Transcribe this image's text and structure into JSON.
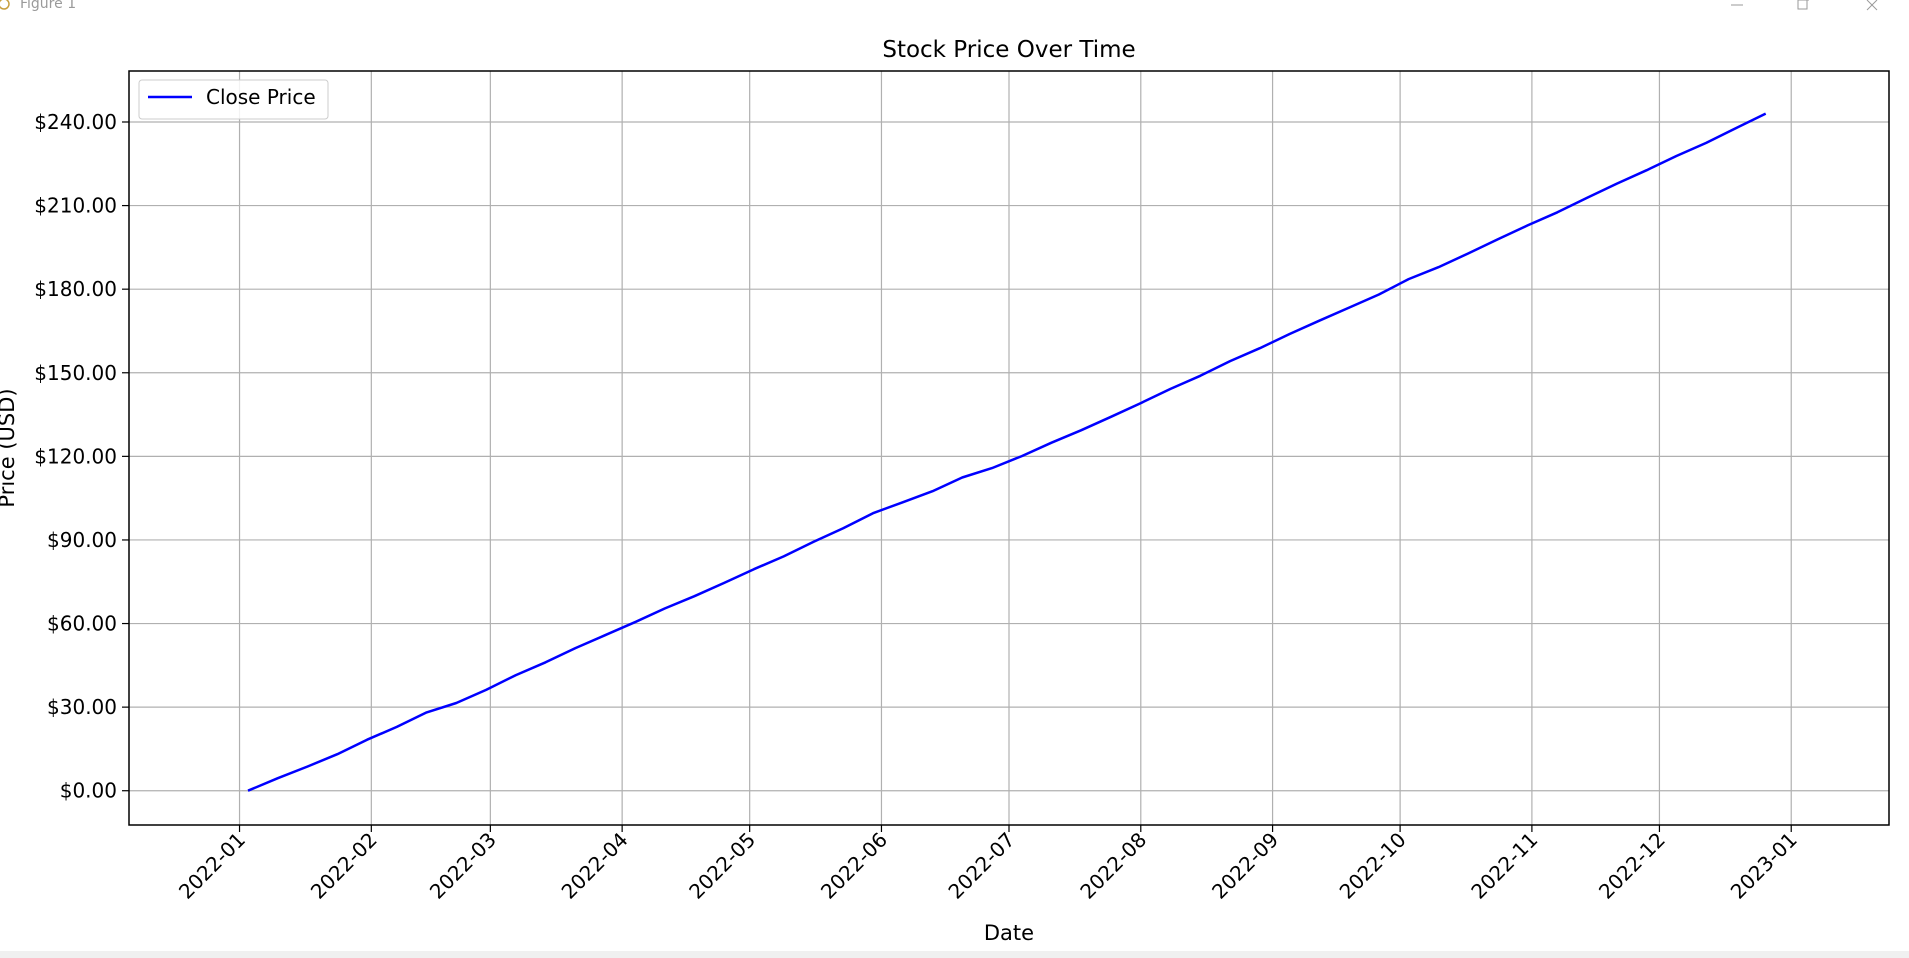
{
  "window": {
    "title": "Figure 1"
  },
  "chart_data": {
    "type": "line",
    "title": "Stock Price Over Time",
    "xlabel": "Date",
    "ylabel": "Price (USD)",
    "x_ticks": [
      "2022-01",
      "2022-02",
      "2022-03",
      "2022-04",
      "2022-05",
      "2022-06",
      "2022-07",
      "2022-08",
      "2022-09",
      "2022-10",
      "2022-11",
      "2022-12",
      "2023-01"
    ],
    "y_ticks": [
      0,
      30,
      60,
      90,
      120,
      150,
      180,
      210,
      240
    ],
    "y_tick_labels": [
      "$0.00",
      "$30.00",
      "$60.00",
      "$90.00",
      "$120.00",
      "$150.00",
      "$180.00",
      "$210.00",
      "$240.00"
    ],
    "xlim": [
      "2021-12-06",
      "2023-01-24"
    ],
    "ylim": [
      -12.3,
      258.3
    ],
    "grid": true,
    "legend": {
      "position": "upper-left",
      "entries": [
        "Close Price"
      ]
    },
    "series": [
      {
        "name": "Close Price",
        "color": "#0000ff",
        "x": [
          "2022-01-03",
          "2022-01-10",
          "2022-01-17",
          "2022-01-24",
          "2022-01-31",
          "2022-02-07",
          "2022-02-14",
          "2022-02-21",
          "2022-02-28",
          "2022-03-07",
          "2022-03-14",
          "2022-03-21",
          "2022-03-28",
          "2022-04-04",
          "2022-04-11",
          "2022-04-18",
          "2022-04-25",
          "2022-05-02",
          "2022-05-09",
          "2022-05-16",
          "2022-05-23",
          "2022-05-30",
          "2022-06-06",
          "2022-06-13",
          "2022-06-20",
          "2022-06-27",
          "2022-07-04",
          "2022-07-11",
          "2022-07-18",
          "2022-07-25",
          "2022-08-01",
          "2022-08-08",
          "2022-08-15",
          "2022-08-22",
          "2022-08-29",
          "2022-09-05",
          "2022-09-12",
          "2022-09-19",
          "2022-09-26",
          "2022-10-03",
          "2022-10-10",
          "2022-10-17",
          "2022-10-24",
          "2022-10-31",
          "2022-11-07",
          "2022-11-14",
          "2022-11-21",
          "2022-11-28",
          "2022-12-05",
          "2022-12-12",
          "2022-12-19",
          "2022-12-26"
        ],
        "values": [
          0,
          4.5,
          8.7,
          13.1,
          18.3,
          22.9,
          28.1,
          31.5,
          36.2,
          41.5,
          46.1,
          51.2,
          55.8,
          60.5,
          65.4,
          69.8,
          74.6,
          79.5,
          84.1,
          89.3,
          94.2,
          99.6,
          103.5,
          107.5,
          112.4,
          115.8,
          120.1,
          124.9,
          129.4,
          134.2,
          139.1,
          144.2,
          148.9,
          154.2,
          158.8,
          163.9,
          168.7,
          173.4,
          178.1,
          183.6,
          187.9,
          192.8,
          197.9,
          202.9,
          207.6,
          212.8,
          217.9,
          222.7,
          227.8,
          232.5,
          237.8,
          243.0
        ]
      }
    ]
  }
}
